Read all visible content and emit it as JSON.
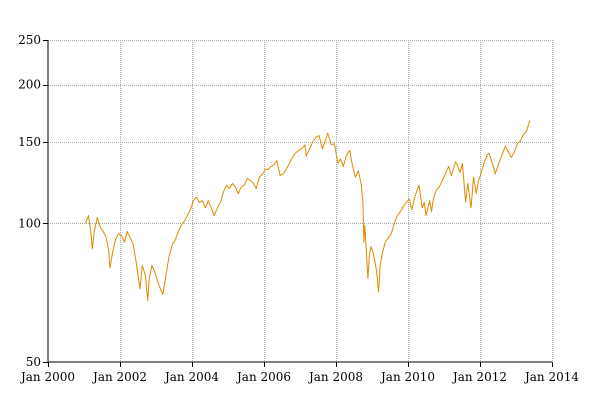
{
  "chart_data": {
    "type": "line",
    "title": "",
    "xlabel": "",
    "ylabel": "",
    "y_scale": "log",
    "grid": true,
    "legend": "none",
    "xlim": [
      "2000-01-01",
      "2014-01-01"
    ],
    "ylim": [
      50,
      250
    ],
    "x_ticks": [
      "Jan 2000",
      "Jan 2002",
      "Jan 2004",
      "Jan 2006",
      "Jan 2008",
      "Jan 2010",
      "Jan 2012",
      "Jan 2014"
    ],
    "x_tick_values": [
      "2000-01-01",
      "2002-01-01",
      "2004-01-01",
      "2006-01-01",
      "2008-01-01",
      "2010-01-01",
      "2012-01-01",
      "2014-01-01"
    ],
    "y_ticks": [
      "50",
      "100",
      "150",
      "200",
      "250"
    ],
    "y_tick_values": [
      50,
      100,
      150,
      200,
      250
    ],
    "series": [
      {
        "color": "#e08a00",
        "points": [
          [
            "2001-01-15",
            100
          ],
          [
            "2001-02-15",
            104
          ],
          [
            "2001-03-10",
            96
          ],
          [
            "2001-03-25",
            88
          ],
          [
            "2001-04-15",
            96
          ],
          [
            "2001-05-15",
            103
          ],
          [
            "2001-06-15",
            98
          ],
          [
            "2001-07-15",
            96
          ],
          [
            "2001-08-15",
            93
          ],
          [
            "2001-09-05",
            88
          ],
          [
            "2001-09-21",
            80
          ],
          [
            "2001-10-15",
            86
          ],
          [
            "2001-11-15",
            92
          ],
          [
            "2001-12-15",
            95
          ],
          [
            "2002-01-15",
            94
          ],
          [
            "2002-02-15",
            91
          ],
          [
            "2002-03-15",
            96
          ],
          [
            "2002-04-15",
            93
          ],
          [
            "2002-05-15",
            90
          ],
          [
            "2002-06-15",
            82
          ],
          [
            "2002-07-23",
            72
          ],
          [
            "2002-08-15",
            81
          ],
          [
            "2002-09-15",
            77
          ],
          [
            "2002-10-09",
            68
          ],
          [
            "2002-10-25",
            76
          ],
          [
            "2002-11-20",
            81
          ],
          [
            "2002-12-15",
            79
          ],
          [
            "2003-01-15",
            75
          ],
          [
            "2003-02-15",
            72
          ],
          [
            "2003-03-11",
            70
          ],
          [
            "2003-04-15",
            78
          ],
          [
            "2003-05-15",
            85
          ],
          [
            "2003-06-15",
            90
          ],
          [
            "2003-07-15",
            92
          ],
          [
            "2003-08-15",
            96
          ],
          [
            "2003-09-15",
            99
          ],
          [
            "2003-10-15",
            101
          ],
          [
            "2003-11-15",
            104
          ],
          [
            "2003-12-15",
            107
          ],
          [
            "2004-01-15",
            112
          ],
          [
            "2004-02-15",
            114
          ],
          [
            "2004-03-15",
            111
          ],
          [
            "2004-04-15",
            112
          ],
          [
            "2004-05-15",
            108
          ],
          [
            "2004-06-15",
            112
          ],
          [
            "2004-07-15",
            108
          ],
          [
            "2004-08-12",
            104
          ],
          [
            "2004-09-15",
            108
          ],
          [
            "2004-10-15",
            111
          ],
          [
            "2004-11-15",
            117
          ],
          [
            "2004-12-15",
            121
          ],
          [
            "2005-01-15",
            119
          ],
          [
            "2005-02-15",
            122
          ],
          [
            "2005-03-15",
            120
          ],
          [
            "2005-04-15",
            116
          ],
          [
            "2005-05-15",
            120
          ],
          [
            "2005-06-15",
            121
          ],
          [
            "2005-07-15",
            125
          ],
          [
            "2005-08-15",
            124
          ],
          [
            "2005-09-15",
            122
          ],
          [
            "2005-10-15",
            119
          ],
          [
            "2005-11-15",
            126
          ],
          [
            "2005-12-15",
            128
          ],
          [
            "2006-01-15",
            131
          ],
          [
            "2006-02-15",
            131
          ],
          [
            "2006-03-15",
            133
          ],
          [
            "2006-04-15",
            134
          ],
          [
            "2006-05-10",
            137
          ],
          [
            "2006-06-13",
            127
          ],
          [
            "2006-07-15",
            128
          ],
          [
            "2006-08-15",
            131
          ],
          [
            "2006-09-15",
            135
          ],
          [
            "2006-10-15",
            139
          ],
          [
            "2006-11-15",
            142
          ],
          [
            "2006-12-15",
            144
          ],
          [
            "2007-01-15",
            145
          ],
          [
            "2007-02-20",
            148
          ],
          [
            "2007-03-05",
            140
          ],
          [
            "2007-04-15",
            146
          ],
          [
            "2007-05-15",
            151
          ],
          [
            "2007-06-15",
            154
          ],
          [
            "2007-07-15",
            155
          ],
          [
            "2007-08-16",
            145
          ],
          [
            "2007-09-15",
            151
          ],
          [
            "2007-10-09",
            157
          ],
          [
            "2007-11-15",
            148
          ],
          [
            "2007-12-15",
            149
          ],
          [
            "2008-01-22",
            135
          ],
          [
            "2008-02-15",
            138
          ],
          [
            "2008-03-15",
            133
          ],
          [
            "2008-04-15",
            140
          ],
          [
            "2008-05-19",
            144
          ],
          [
            "2008-06-15",
            134
          ],
          [
            "2008-07-15",
            126
          ],
          [
            "2008-08-15",
            130
          ],
          [
            "2008-09-15",
            121
          ],
          [
            "2008-09-30",
            111
          ],
          [
            "2008-10-10",
            91
          ],
          [
            "2008-10-20",
            99
          ],
          [
            "2008-11-20",
            76
          ],
          [
            "2008-12-05",
            85
          ],
          [
            "2008-12-20",
            89
          ],
          [
            "2009-01-15",
            86
          ],
          [
            "2009-02-15",
            79
          ],
          [
            "2009-03-09",
            71
          ],
          [
            "2009-03-25",
            81
          ],
          [
            "2009-04-15",
            86
          ],
          [
            "2009-05-15",
            91
          ],
          [
            "2009-06-15",
            93
          ],
          [
            "2009-07-15",
            95
          ],
          [
            "2009-08-15",
            100
          ],
          [
            "2009-09-15",
            104
          ],
          [
            "2009-10-15",
            106
          ],
          [
            "2009-11-15",
            109
          ],
          [
            "2009-12-15",
            111
          ],
          [
            "2010-01-15",
            113
          ],
          [
            "2010-02-08",
            107
          ],
          [
            "2010-03-15",
            115
          ],
          [
            "2010-04-23",
            121
          ],
          [
            "2010-05-25",
            108
          ],
          [
            "2010-06-15",
            111
          ],
          [
            "2010-07-02",
            104
          ],
          [
            "2010-08-09",
            112
          ],
          [
            "2010-08-27",
            106
          ],
          [
            "2010-09-15",
            113
          ],
          [
            "2010-10-15",
            118
          ],
          [
            "2010-11-15",
            120
          ],
          [
            "2010-12-15",
            124
          ],
          [
            "2011-01-15",
            128
          ],
          [
            "2011-02-18",
            133
          ],
          [
            "2011-03-16",
            127
          ],
          [
            "2011-04-29",
            136
          ],
          [
            "2011-05-15",
            134
          ],
          [
            "2011-06-15",
            129
          ],
          [
            "2011-07-07",
            135
          ],
          [
            "2011-08-08",
            111
          ],
          [
            "2011-08-31",
            122
          ],
          [
            "2011-10-03",
            108
          ],
          [
            "2011-10-27",
            126
          ],
          [
            "2011-11-25",
            116
          ],
          [
            "2011-12-15",
            123
          ],
          [
            "2012-01-15",
            129
          ],
          [
            "2012-02-15",
            136
          ],
          [
            "2012-03-15",
            141
          ],
          [
            "2012-04-02",
            142
          ],
          [
            "2012-05-15",
            133
          ],
          [
            "2012-06-04",
            128
          ],
          [
            "2012-07-15",
            136
          ],
          [
            "2012-08-15",
            141
          ],
          [
            "2012-09-14",
            147
          ],
          [
            "2012-10-15",
            143
          ],
          [
            "2012-11-15",
            139
          ],
          [
            "2012-12-15",
            143
          ],
          [
            "2013-01-15",
            149
          ],
          [
            "2013-02-15",
            151
          ],
          [
            "2013-03-15",
            156
          ],
          [
            "2013-04-15",
            158
          ],
          [
            "2013-05-21",
            167
          ]
        ]
      }
    ]
  }
}
